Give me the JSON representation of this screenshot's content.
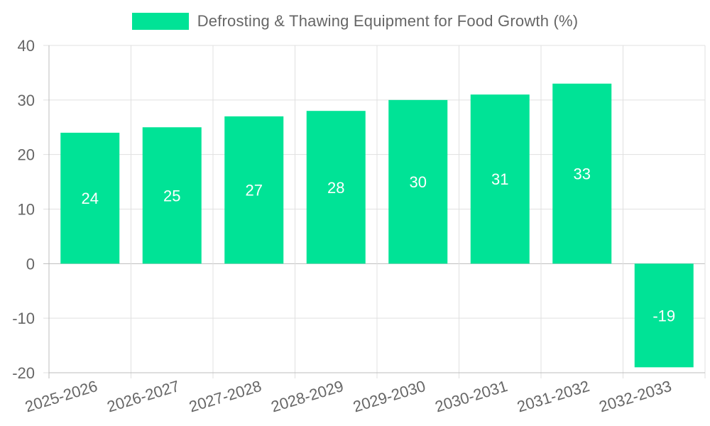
{
  "chart_data": {
    "type": "bar",
    "categories": [
      "2025-2026",
      "2026-2027",
      "2027-2028",
      "2028-2029",
      "2029-2030",
      "2030-2031",
      "2031-2032",
      "2032-2033"
    ],
    "series": [
      {
        "name": "Defrosting & Thawing Equipment for Food Growth (%)",
        "values": [
          24,
          25,
          27,
          28,
          30,
          31,
          33,
          -19
        ],
        "color": "#00e396"
      }
    ],
    "ylim": [
      -20,
      40
    ],
    "yticks": [
      40,
      30,
      20,
      10,
      0,
      -10,
      -20
    ],
    "grid": true,
    "legend": "top-center",
    "data_labels": true,
    "label_color": "#ffffff",
    "tick_color": "#666666",
    "grid_color": "#e0e0e0"
  }
}
